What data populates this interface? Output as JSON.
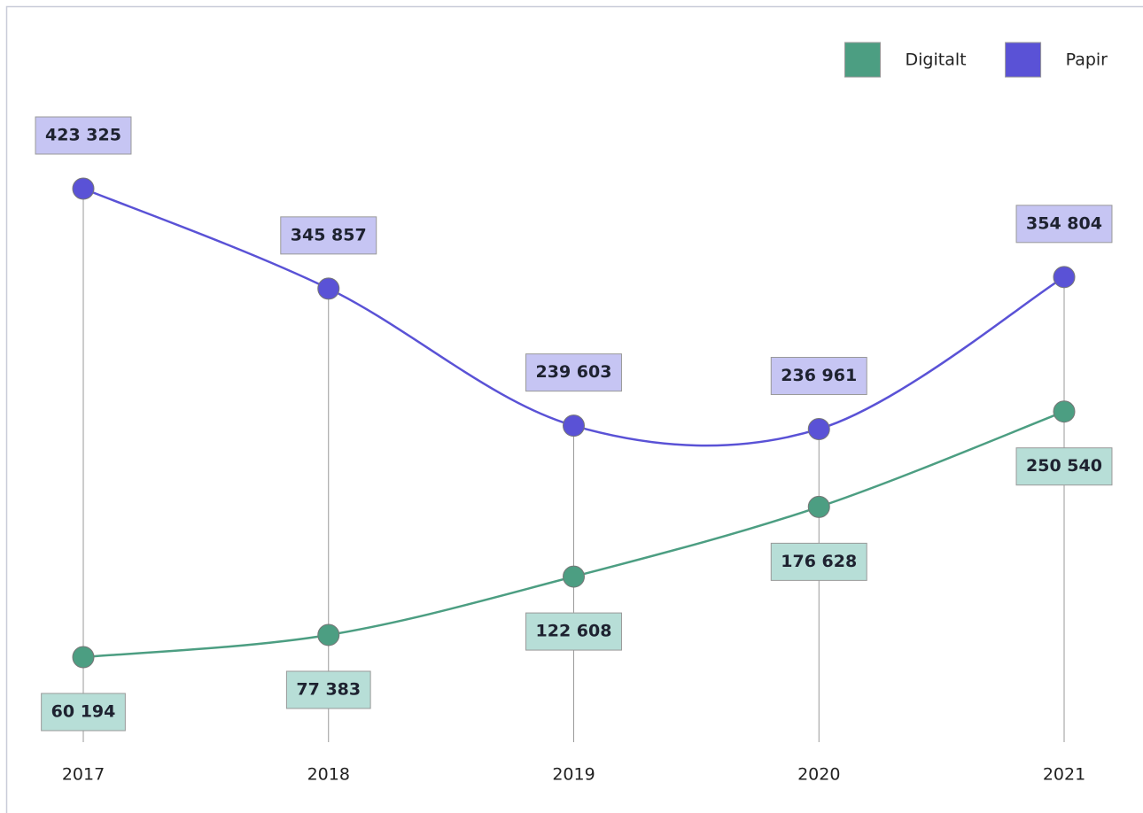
{
  "chart_data": {
    "type": "line",
    "categories": [
      "2017",
      "2018",
      "2019",
      "2020",
      "2021"
    ],
    "series": [
      {
        "name": "Digitalt",
        "color": "#4c9e82",
        "label_fill": "#b7ded7",
        "values": [
          60194,
          77383,
          122608,
          176628,
          250540
        ],
        "value_labels": [
          "60 194",
          "77 383",
          "122 608",
          "176 628",
          "250 540"
        ]
      },
      {
        "name": "Papir",
        "color": "#5a52d6",
        "label_fill": "#c6c5f3",
        "values": [
          423325,
          345857,
          239603,
          236961,
          354804
        ],
        "value_labels": [
          "423 325",
          "345 857",
          "239 603",
          "236 961",
          "354 804"
        ]
      }
    ],
    "legend": "top-right"
  }
}
